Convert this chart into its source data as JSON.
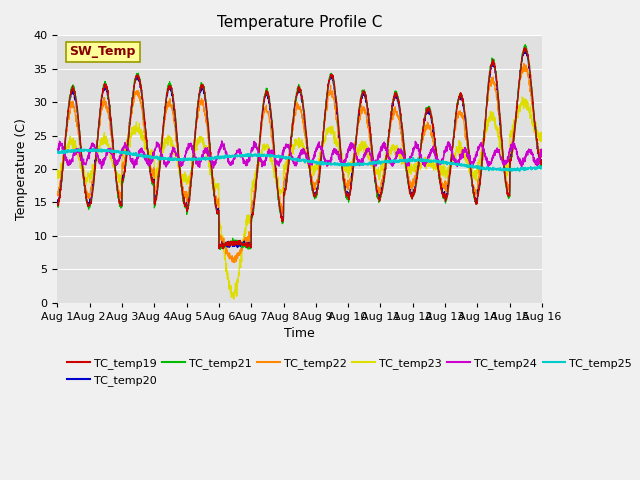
{
  "title": "Temperature Profile C",
  "xlabel": "Time",
  "ylabel": "Temperature (C)",
  "ylim": [
    0,
    40
  ],
  "xlim": [
    0,
    15
  ],
  "yticks": [
    0,
    5,
    10,
    15,
    20,
    25,
    30,
    35,
    40
  ],
  "xtick_labels": [
    "Aug 1",
    "Aug 2",
    "Aug 3",
    "Aug 4",
    "Aug 5",
    "Aug 6",
    "Aug 7",
    "Aug 8",
    "Aug 9",
    "Aug 10",
    "Aug 11",
    "Aug 12",
    "Aug 13",
    "Aug 14",
    "Aug 15",
    "Aug 16"
  ],
  "series_colors": {
    "TC_temp19": "#cc0000",
    "TC_temp20": "#0000cc",
    "TC_temp21": "#00bb00",
    "TC_temp22": "#ff8800",
    "TC_temp23": "#dddd00",
    "TC_temp24": "#cc00cc",
    "TC_temp25": "#00cccc"
  },
  "SW_Temp_box_facecolor": "#ffff99",
  "SW_Temp_box_edgecolor": "#999900",
  "SW_Temp_text_color": "#880000",
  "plot_bg_color": "#e0e0e0",
  "fig_bg_color": "#f0f0f0",
  "grid_color": "#ffffff",
  "title_fontsize": 11,
  "label_fontsize": 9,
  "tick_fontsize": 8,
  "legend_fontsize": 8,
  "daily_highs": [
    32,
    32.5,
    34,
    32.5,
    32.5,
    9,
    31.5,
    32,
    34,
    31.5,
    31.2,
    29,
    31,
    36,
    38
  ],
  "daily_lows": [
    14.5,
    14.5,
    18,
    14.5,
    13.5,
    8.5,
    12.5,
    16,
    16,
    15.5,
    16,
    16,
    15,
    16,
    21
  ],
  "figsize": [
    6.4,
    4.8
  ],
  "dpi": 100
}
